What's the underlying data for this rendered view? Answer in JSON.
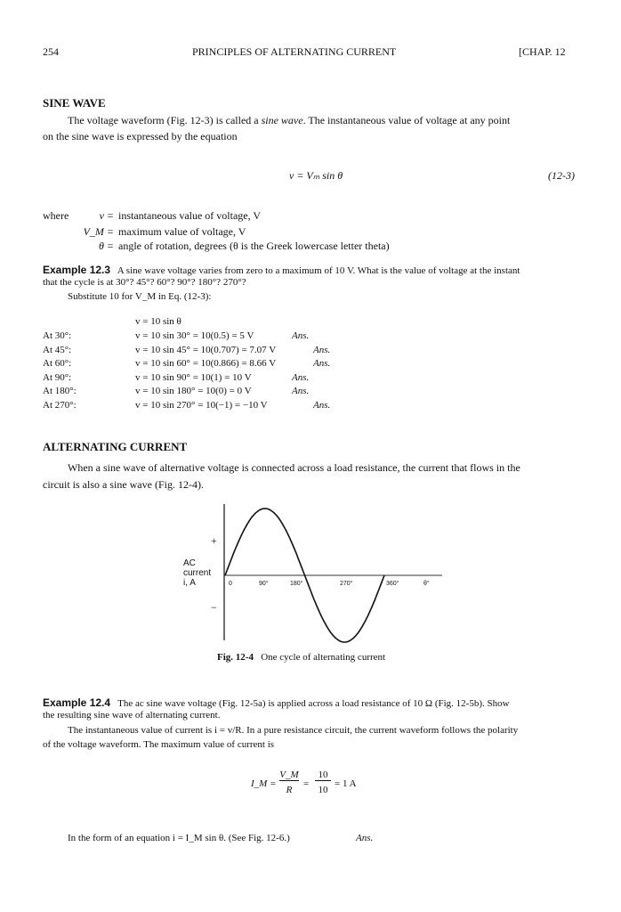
{
  "header": {
    "page_number": "254",
    "running_title": "PRINCIPLES OF ALTERNATING CURRENT",
    "chapter": "[CHAP. 12"
  },
  "sine_wave": {
    "heading": "SINE WAVE",
    "para_1a": "The voltage waveform (Fig. 12-3) is called a ",
    "para_1_em": "sine wave",
    "para_1b": ". The instantaneous value of voltage at any point",
    "para_2": "on the sine wave is expressed by the equation",
    "equation": "v = Vₘ sin θ",
    "equation_html_label": "(12-3)",
    "where": "where",
    "defs": [
      {
        "sym": "v =",
        "text": "instantaneous value of voltage, V"
      },
      {
        "sym": "V_M =",
        "text": "maximum value of voltage, V"
      },
      {
        "sym": "θ =",
        "text": "angle of rotation, degrees (θ is the Greek lowercase letter theta)"
      }
    ]
  },
  "example_12_3": {
    "label": "Example 12.3",
    "line_1": "A sine wave voltage varies from zero to a maximum of 10 V. What is the value of voltage at the instant",
    "line_2": "that the cycle is at 30°? 45°? 60°? 90°? 180°? 270°?",
    "line_3": "Substitute 10 for V_M in Eq. (12-3):",
    "base": "v = 10 sin θ",
    "rows": [
      {
        "at": "At  30°:",
        "eq": "v = 10 sin 30° = 10(0.5) = 5 V",
        "ans": "Ans."
      },
      {
        "at": "At  45°:",
        "eq": "v = 10 sin 45° = 10(0.707) = 7.07 V",
        "ans": "Ans."
      },
      {
        "at": "At  60°:",
        "eq": "v = 10 sin 60° = 10(0.866) = 8.66 V",
        "ans": "Ans."
      },
      {
        "at": "At  90°:",
        "eq": "v = 10 sin 90° = 10(1) = 10 V",
        "ans": "Ans."
      },
      {
        "at": "At 180°:",
        "eq": "v = 10 sin 180° = 10(0) = 0 V",
        "ans": "Ans."
      },
      {
        "at": "At 270°:",
        "eq": "v = 10 sin 270° = 10(−1) = −10 V",
        "ans": "Ans."
      }
    ]
  },
  "alternating_current": {
    "heading": "ALTERNATING CURRENT",
    "para_1": "When a sine wave of alternative voltage is connected across a load resistance, the current that flows in the",
    "para_2": "circuit is also a sine wave (Fig. 12-4)."
  },
  "figure": {
    "plus": "+",
    "minus": "−",
    "ylabel_1": "AC",
    "ylabel_2": "current",
    "ylabel_3": "i, A",
    "ticks": [
      "0",
      "90°",
      "180°",
      "270°",
      "360°",
      "θ°"
    ],
    "caption_label": "Fig. 12-4",
    "caption": "One cycle of alternating current"
  },
  "example_12_4": {
    "label": "Example 12.4",
    "line_1": "The ac sine wave voltage (Fig. 12-5a) is applied across a load resistance of 10 Ω (Fig. 12-5b). Show",
    "line_2": "the resulting sine wave of alternating current.",
    "line_3": "The instantaneous value of current is i = v/R. In a pure resistance circuit, the current waveform follows the polarity",
    "line_4": "of the voltage waveform. The maximum value of current is",
    "eq_lhs": "I_M =",
    "eq_num1": "V_M",
    "eq_den1": "R",
    "eq_num2": "10",
    "eq_den2": "10",
    "eq_rhs": "= 1 A",
    "line_5": "In the form of an equation i = I_M sin θ. (See Fig. 12-6.)",
    "ans": "Ans."
  }
}
